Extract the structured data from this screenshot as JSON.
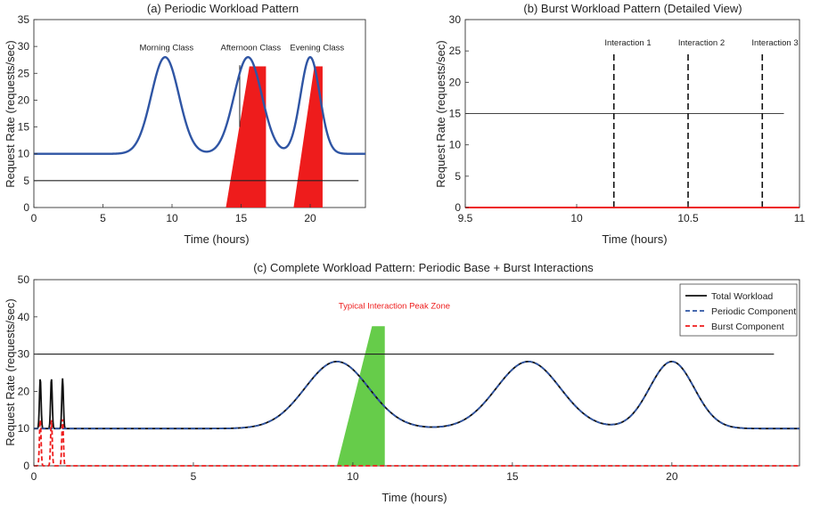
{
  "chart_data": [
    {
      "id": "a",
      "type": "line",
      "title": "(a) Periodic Workload Pattern",
      "xlabel": "Time (hours)",
      "ylabel": "Request Rate (requests/sec)",
      "xlim": [
        0,
        24
      ],
      "ylim": [
        0,
        35
      ],
      "xticks": [
        0,
        5,
        10,
        15,
        20
      ],
      "yticks": [
        0,
        5,
        10,
        15,
        20,
        25,
        30,
        35
      ],
      "grid": false,
      "series": [
        {
          "kind": "curve",
          "color": "#2f55a4",
          "baseline": 10,
          "peaks": [
            [
              9.5,
              18,
              1.0
            ],
            [
              15.5,
              18,
              1.0
            ],
            [
              20.0,
              18,
              0.7
            ]
          ]
        }
      ],
      "reference_lines": [
        {
          "y": 5,
          "x0": 0,
          "x1": 23.5,
          "color": "#222222"
        }
      ],
      "vertical_lines": [
        {
          "x": 14.9,
          "y0": 15,
          "y1": 26.5,
          "color": "#222222"
        }
      ],
      "polygons": [
        {
          "color": "#ee1c1c",
          "points": [
            [
              13.9,
              0
            ],
            [
              15.6,
              26.3
            ],
            [
              16.8,
              26.3
            ],
            [
              16.8,
              0
            ]
          ]
        },
        {
          "color": "#ee1c1c",
          "points": [
            [
              18.8,
              0
            ],
            [
              20.3,
              26.3
            ],
            [
              20.9,
              26.3
            ],
            [
              20.9,
              0
            ]
          ]
        }
      ],
      "annotations": [
        {
          "text": "Morning Class",
          "x": 9.6,
          "y": 29.3
        },
        {
          "text": "Afternoon Class",
          "x": 15.7,
          "y": 29.3
        },
        {
          "text": "Evening Class",
          "x": 20.5,
          "y": 29.3
        }
      ]
    },
    {
      "id": "b",
      "type": "line",
      "title": "(b) Burst Workload Pattern (Detailed View)",
      "xlabel": "Time (hours)",
      "ylabel": "Request Rate (requests/sec)",
      "xlim": [
        9.5,
        11
      ],
      "ylim": [
        0,
        30
      ],
      "xticks": [
        9.5,
        10,
        10.5,
        11
      ],
      "yticks": [
        0,
        5,
        10,
        15,
        20,
        25,
        30
      ],
      "grid": false,
      "series": [
        {
          "kind": "line",
          "color": "#ee1c1c",
          "x": [
            9.5,
            11
          ],
          "y": [
            0,
            0
          ]
        }
      ],
      "reference_lines": [
        {
          "y": 15,
          "x0": 9.5,
          "x1": 10.93,
          "color": "#444444"
        }
      ],
      "dashed_vlines": [
        {
          "x": 10.167,
          "y0": 0,
          "y1": 25,
          "color": "#111111"
        },
        {
          "x": 10.5,
          "y0": 0,
          "y1": 25,
          "color": "#111111"
        },
        {
          "x": 10.833,
          "y0": 0,
          "y1": 25,
          "color": "#111111"
        }
      ],
      "annotations": [
        {
          "text": "Interaction 1",
          "x": 10.23,
          "y": 25.9
        },
        {
          "text": "Interaction 2",
          "x": 10.56,
          "y": 25.9
        },
        {
          "text": "Interaction 3",
          "x": 10.89,
          "y": 25.9
        }
      ]
    },
    {
      "id": "c",
      "type": "line",
      "title": "(c) Complete Workload Pattern: Periodic Base + Burst Interactions",
      "xlabel": "Time (hours)",
      "ylabel": "Request Rate (requests/sec)",
      "xlim": [
        0,
        24
      ],
      "ylim": [
        0,
        50
      ],
      "xticks": [
        0,
        5,
        10,
        15,
        20
      ],
      "yticks": [
        0,
        10,
        20,
        30,
        40,
        50
      ],
      "grid": false,
      "legend_position": "top-right",
      "series": [
        {
          "name": "Total Workload",
          "kind": "curve",
          "color": "#111111",
          "dash": "",
          "baseline": 10,
          "peaks": [
            [
              9.5,
              18,
              1.0
            ],
            [
              15.5,
              18,
              1.0
            ],
            [
              20.0,
              18,
              0.7
            ]
          ],
          "spikes": [
            [
              0.2,
              13.5
            ],
            [
              0.55,
              13.5
            ],
            [
              0.9,
              13.5
            ]
          ]
        },
        {
          "name": "Periodic Component",
          "kind": "curve",
          "color": "#2f55a4",
          "dash": "5,3",
          "baseline": 10,
          "peaks": [
            [
              9.5,
              18,
              1.0
            ],
            [
              15.5,
              18,
              1.0
            ],
            [
              20.0,
              18,
              0.7
            ]
          ]
        },
        {
          "name": "Burst Component",
          "kind": "curve",
          "color": "#ee1c1c",
          "dash": "5,3",
          "baseline": 0,
          "peaks": [],
          "spikes": [
            [
              0.2,
              12.5
            ],
            [
              0.55,
              12.5
            ],
            [
              0.9,
              12.5
            ]
          ]
        }
      ],
      "reference_lines": [
        {
          "y": 30,
          "x0": 0,
          "x1": 23.2,
          "color": "#222222"
        }
      ],
      "polygons": [
        {
          "color": "#66cc4a",
          "points": [
            [
              9.5,
              0
            ],
            [
              10.6,
              37.5
            ],
            [
              11.0,
              37.5
            ],
            [
              11.0,
              0
            ]
          ]
        }
      ],
      "annotations": [
        {
          "text": "Typical Interaction Peak Zone",
          "x": 11.3,
          "y": 42.2,
          "color": "#ee1c1c"
        }
      ]
    }
  ]
}
